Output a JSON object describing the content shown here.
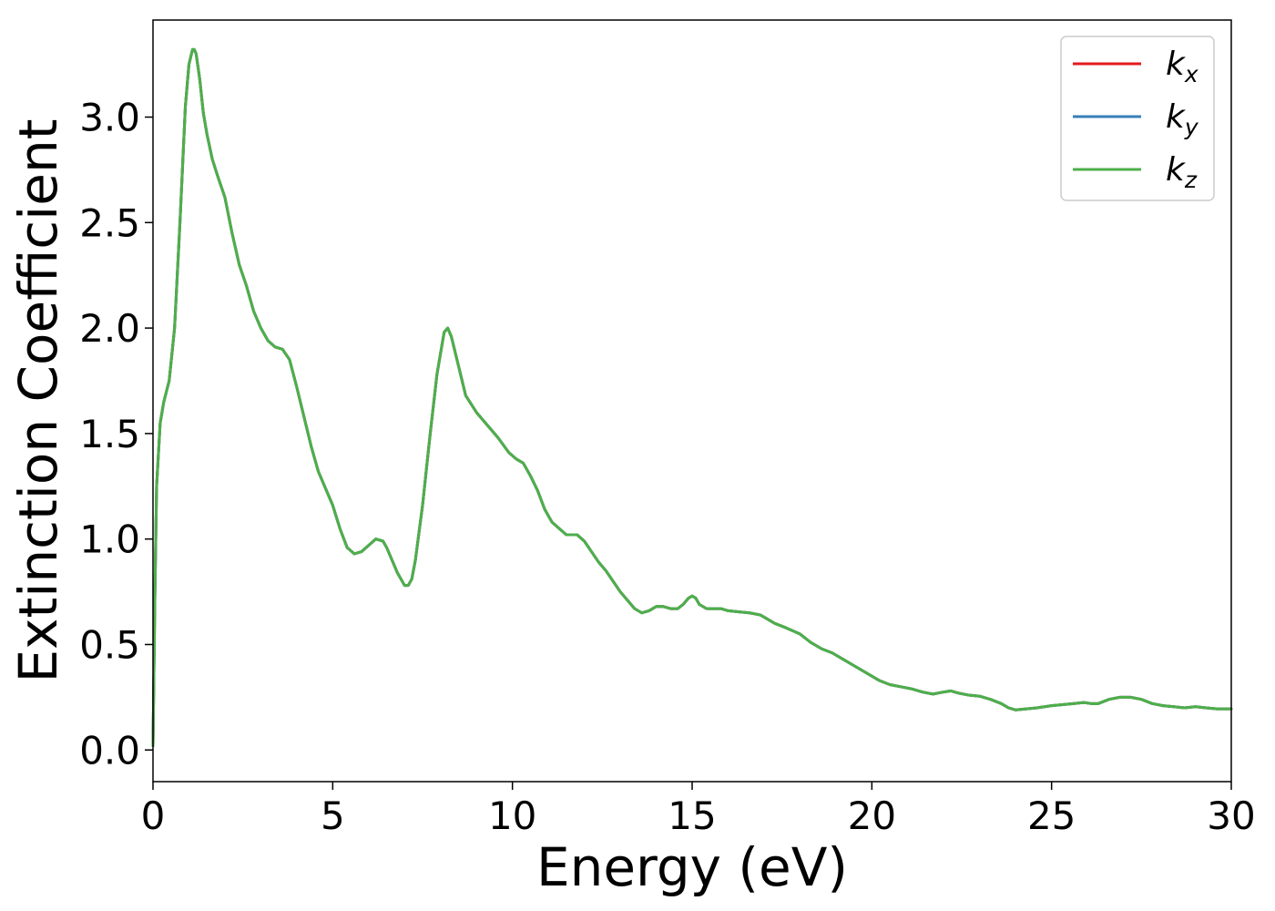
{
  "chart_data": {
    "type": "line",
    "title": "",
    "xlabel": "Energy (eV)",
    "ylabel": "Extinction Coefficient",
    "xlim": [
      0,
      30
    ],
    "ylim": [
      -0.15,
      3.46
    ],
    "xticks": [
      0,
      5,
      10,
      15,
      20,
      25,
      30
    ],
    "xtick_labels": [
      "0",
      "5",
      "10",
      "15",
      "20",
      "25",
      "30"
    ],
    "yticks": [
      0.0,
      0.5,
      1.0,
      1.5,
      2.0,
      2.5,
      3.0
    ],
    "ytick_labels": [
      "0.0",
      "0.5",
      "1.0",
      "1.5",
      "2.0",
      "2.5",
      "3.0"
    ],
    "grid": false,
    "legend_position": "top-right",
    "x": [
      0.0,
      0.05,
      0.1,
      0.2,
      0.3,
      0.45,
      0.6,
      0.75,
      0.9,
      1.0,
      1.1,
      1.15,
      1.2,
      1.3,
      1.4,
      1.5,
      1.65,
      1.8,
      2.0,
      2.2,
      2.4,
      2.6,
      2.8,
      3.0,
      3.2,
      3.4,
      3.6,
      3.8,
      4.0,
      4.2,
      4.4,
      4.6,
      4.8,
      5.0,
      5.2,
      5.4,
      5.6,
      5.8,
      6.0,
      6.2,
      6.4,
      6.5,
      6.6,
      6.8,
      7.0,
      7.1,
      7.2,
      7.3,
      7.5,
      7.7,
      7.9,
      8.1,
      8.2,
      8.3,
      8.5,
      8.7,
      9.0,
      9.3,
      9.6,
      9.9,
      10.1,
      10.3,
      10.5,
      10.7,
      10.9,
      11.1,
      11.3,
      11.5,
      11.8,
      12.0,
      12.2,
      12.4,
      12.6,
      12.8,
      13.0,
      13.2,
      13.4,
      13.6,
      13.8,
      14.0,
      14.2,
      14.4,
      14.6,
      14.75,
      14.9,
      15.0,
      15.1,
      15.2,
      15.4,
      15.6,
      15.8,
      16.0,
      16.3,
      16.6,
      16.9,
      17.1,
      17.3,
      17.6,
      18.0,
      18.3,
      18.6,
      18.9,
      19.2,
      19.5,
      19.8,
      20.0,
      20.2,
      20.5,
      20.8,
      21.1,
      21.4,
      21.7,
      22.0,
      22.2,
      22.4,
      22.7,
      23.0,
      23.3,
      23.6,
      23.8,
      24.0,
      24.3,
      24.6,
      25.0,
      25.3,
      25.6,
      25.9,
      26.1,
      26.3,
      26.6,
      26.9,
      27.2,
      27.5,
      27.8,
      28.1,
      28.4,
      28.7,
      29.0,
      29.3,
      29.6,
      30.0
    ],
    "series": [
      {
        "name": "k_x",
        "color": "#e41a1c",
        "values": [
          0.02,
          0.7,
          1.25,
          1.55,
          1.65,
          1.75,
          2.0,
          2.5,
          3.05,
          3.25,
          3.32,
          3.32,
          3.3,
          3.18,
          3.02,
          2.92,
          2.8,
          2.72,
          2.62,
          2.45,
          2.3,
          2.2,
          2.08,
          2.0,
          1.94,
          1.91,
          1.9,
          1.85,
          1.72,
          1.58,
          1.44,
          1.32,
          1.24,
          1.16,
          1.05,
          0.96,
          0.93,
          0.94,
          0.97,
          1.0,
          0.99,
          0.96,
          0.92,
          0.84,
          0.78,
          0.78,
          0.81,
          0.9,
          1.16,
          1.48,
          1.78,
          1.98,
          2.0,
          1.96,
          1.82,
          1.68,
          1.6,
          1.54,
          1.48,
          1.41,
          1.38,
          1.36,
          1.3,
          1.23,
          1.14,
          1.08,
          1.05,
          1.02,
          1.02,
          0.99,
          0.94,
          0.89,
          0.85,
          0.8,
          0.75,
          0.71,
          0.67,
          0.65,
          0.66,
          0.68,
          0.68,
          0.67,
          0.67,
          0.69,
          0.72,
          0.73,
          0.72,
          0.69,
          0.67,
          0.67,
          0.67,
          0.66,
          0.655,
          0.65,
          0.64,
          0.62,
          0.6,
          0.58,
          0.55,
          0.51,
          0.48,
          0.46,
          0.43,
          0.4,
          0.37,
          0.35,
          0.33,
          0.31,
          0.3,
          0.29,
          0.275,
          0.265,
          0.275,
          0.28,
          0.27,
          0.26,
          0.255,
          0.24,
          0.22,
          0.2,
          0.19,
          0.195,
          0.2,
          0.21,
          0.215,
          0.22,
          0.225,
          0.22,
          0.22,
          0.24,
          0.25,
          0.25,
          0.24,
          0.22,
          0.21,
          0.205,
          0.2,
          0.205,
          0.2,
          0.195,
          0.195
        ]
      },
      {
        "name": "k_y",
        "color": "#377eb8",
        "values": [
          0.02,
          0.7,
          1.25,
          1.55,
          1.65,
          1.75,
          2.0,
          2.5,
          3.05,
          3.25,
          3.32,
          3.32,
          3.3,
          3.18,
          3.02,
          2.92,
          2.8,
          2.72,
          2.62,
          2.45,
          2.3,
          2.2,
          2.08,
          2.0,
          1.94,
          1.91,
          1.9,
          1.85,
          1.72,
          1.58,
          1.44,
          1.32,
          1.24,
          1.16,
          1.05,
          0.96,
          0.93,
          0.94,
          0.97,
          1.0,
          0.99,
          0.96,
          0.92,
          0.84,
          0.78,
          0.78,
          0.81,
          0.9,
          1.16,
          1.48,
          1.78,
          1.98,
          2.0,
          1.96,
          1.82,
          1.68,
          1.6,
          1.54,
          1.48,
          1.41,
          1.38,
          1.36,
          1.3,
          1.23,
          1.14,
          1.08,
          1.05,
          1.02,
          1.02,
          0.99,
          0.94,
          0.89,
          0.85,
          0.8,
          0.75,
          0.71,
          0.67,
          0.65,
          0.66,
          0.68,
          0.68,
          0.67,
          0.67,
          0.69,
          0.72,
          0.73,
          0.72,
          0.69,
          0.67,
          0.67,
          0.67,
          0.66,
          0.655,
          0.65,
          0.64,
          0.62,
          0.6,
          0.58,
          0.55,
          0.51,
          0.48,
          0.46,
          0.43,
          0.4,
          0.37,
          0.35,
          0.33,
          0.31,
          0.3,
          0.29,
          0.275,
          0.265,
          0.275,
          0.28,
          0.27,
          0.26,
          0.255,
          0.24,
          0.22,
          0.2,
          0.19,
          0.195,
          0.2,
          0.21,
          0.215,
          0.22,
          0.225,
          0.22,
          0.22,
          0.24,
          0.25,
          0.25,
          0.24,
          0.22,
          0.21,
          0.205,
          0.2,
          0.205,
          0.2,
          0.195,
          0.195
        ]
      },
      {
        "name": "k_z",
        "color": "#4daf4a",
        "values": [
          0.02,
          0.7,
          1.25,
          1.55,
          1.65,
          1.75,
          2.0,
          2.5,
          3.05,
          3.25,
          3.32,
          3.32,
          3.3,
          3.18,
          3.02,
          2.92,
          2.8,
          2.72,
          2.62,
          2.45,
          2.3,
          2.2,
          2.08,
          2.0,
          1.94,
          1.91,
          1.9,
          1.85,
          1.72,
          1.58,
          1.44,
          1.32,
          1.24,
          1.16,
          1.05,
          0.96,
          0.93,
          0.94,
          0.97,
          1.0,
          0.99,
          0.96,
          0.92,
          0.84,
          0.78,
          0.78,
          0.81,
          0.9,
          1.16,
          1.48,
          1.78,
          1.98,
          2.0,
          1.96,
          1.82,
          1.68,
          1.6,
          1.54,
          1.48,
          1.41,
          1.38,
          1.36,
          1.3,
          1.23,
          1.14,
          1.08,
          1.05,
          1.02,
          1.02,
          0.99,
          0.94,
          0.89,
          0.85,
          0.8,
          0.75,
          0.71,
          0.67,
          0.65,
          0.66,
          0.68,
          0.68,
          0.67,
          0.67,
          0.69,
          0.72,
          0.73,
          0.72,
          0.69,
          0.67,
          0.67,
          0.67,
          0.66,
          0.655,
          0.65,
          0.64,
          0.62,
          0.6,
          0.58,
          0.55,
          0.51,
          0.48,
          0.46,
          0.43,
          0.4,
          0.37,
          0.35,
          0.33,
          0.31,
          0.3,
          0.29,
          0.275,
          0.265,
          0.275,
          0.28,
          0.27,
          0.26,
          0.255,
          0.24,
          0.22,
          0.2,
          0.19,
          0.195,
          0.2,
          0.21,
          0.215,
          0.22,
          0.225,
          0.22,
          0.22,
          0.24,
          0.25,
          0.25,
          0.24,
          0.22,
          0.21,
          0.205,
          0.2,
          0.205,
          0.2,
          0.195,
          0.195
        ]
      }
    ],
    "legend": [
      {
        "base": "k",
        "sub": "x"
      },
      {
        "base": "k",
        "sub": "y"
      },
      {
        "base": "k",
        "sub": "z"
      }
    ]
  }
}
